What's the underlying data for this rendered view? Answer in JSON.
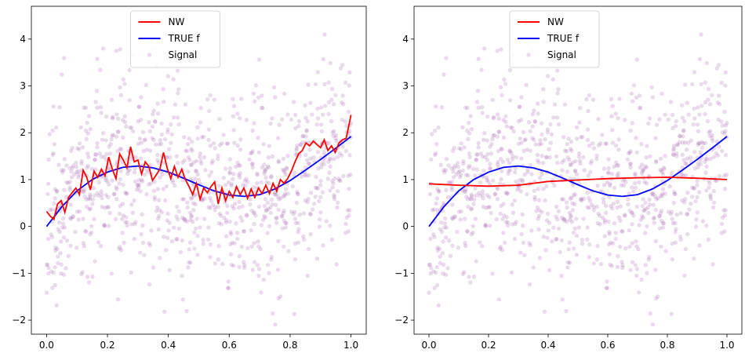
{
  "colors": {
    "nw": "#ff0000",
    "true_f": "#0000ff",
    "signal": "#a05aa8"
  },
  "chart_data": [
    {
      "type": "scatter",
      "title": "",
      "xlabel": "",
      "ylabel": "",
      "xlim": [
        -0.05,
        1.05
      ],
      "ylim": [
        -2.3,
        4.7
      ],
      "x_ticks": [
        0.0,
        0.2,
        0.4,
        0.6,
        0.8,
        1.0
      ],
      "x_tick_labels": [
        "0.0",
        "0.2",
        "0.4",
        "0.6",
        "0.8",
        "1.0"
      ],
      "y_ticks": [
        -2,
        -1,
        0,
        1,
        2,
        3,
        4
      ],
      "y_tick_labels": [
        "−2",
        "−1",
        "0",
        "1",
        "2",
        "3",
        "4"
      ],
      "grid": false,
      "legend_position": "top-center",
      "legend": [
        "NW",
        "TRUE f",
        "Signal"
      ],
      "series": [
        {
          "name": "NW",
          "kind": "line",
          "x": [
            0.0,
            0.012,
            0.024,
            0.036,
            0.048,
            0.06,
            0.072,
            0.084,
            0.096,
            0.108,
            0.12,
            0.132,
            0.144,
            0.156,
            0.168,
            0.18,
            0.192,
            0.204,
            0.216,
            0.228,
            0.24,
            0.252,
            0.264,
            0.276,
            0.288,
            0.3,
            0.312,
            0.324,
            0.336,
            0.348,
            0.36,
            0.372,
            0.384,
            0.396,
            0.408,
            0.42,
            0.432,
            0.444,
            0.456,
            0.468,
            0.48,
            0.492,
            0.504,
            0.516,
            0.528,
            0.54,
            0.552,
            0.564,
            0.576,
            0.588,
            0.6,
            0.612,
            0.624,
            0.636,
            0.648,
            0.66,
            0.672,
            0.684,
            0.696,
            0.708,
            0.72,
            0.732,
            0.744,
            0.756,
            0.768,
            0.78,
            0.792,
            0.804,
            0.816,
            0.828,
            0.84,
            0.852,
            0.864,
            0.876,
            0.888,
            0.9,
            0.912,
            0.924,
            0.936,
            0.948,
            0.96,
            0.972,
            0.984,
            1.0
          ],
          "y": [
            0.32,
            0.22,
            0.15,
            0.48,
            0.55,
            0.3,
            0.62,
            0.72,
            0.82,
            0.68,
            1.2,
            1.05,
            0.78,
            1.18,
            1.05,
            1.22,
            1.08,
            1.48,
            1.22,
            1.02,
            1.55,
            1.42,
            1.25,
            1.7,
            1.38,
            1.42,
            1.12,
            1.38,
            1.28,
            0.98,
            1.1,
            1.22,
            1.58,
            1.25,
            1.02,
            1.28,
            1.05,
            1.22,
            1.0,
            0.85,
            0.68,
            0.92,
            0.58,
            0.82,
            0.72,
            0.85,
            0.95,
            0.48,
            0.82,
            0.55,
            0.75,
            0.62,
            0.85,
            0.68,
            0.82,
            0.6,
            0.8,
            0.62,
            0.82,
            0.7,
            0.88,
            0.7,
            0.92,
            0.75,
            1.0,
            0.92,
            1.02,
            1.18,
            1.38,
            1.55,
            1.62,
            1.78,
            1.72,
            1.82,
            1.75,
            1.68,
            1.85,
            1.62,
            1.72,
            1.58,
            1.78,
            1.85,
            1.88,
            2.38
          ],
          "color": "#ff0000"
        },
        {
          "name": "TRUE f",
          "kind": "line",
          "x": [
            0.0,
            0.05,
            0.1,
            0.15,
            0.2,
            0.25,
            0.3,
            0.35,
            0.4,
            0.45,
            0.5,
            0.55,
            0.6,
            0.65,
            0.7,
            0.75,
            0.8,
            0.85,
            0.9,
            0.95,
            1.0
          ],
          "y": [
            0.0,
            0.42,
            0.76,
            1.0,
            1.16,
            1.26,
            1.29,
            1.25,
            1.16,
            1.03,
            0.89,
            0.76,
            0.67,
            0.64,
            0.68,
            0.8,
            0.98,
            1.2,
            1.43,
            1.67,
            1.92
          ],
          "color": "#0000ff"
        },
        {
          "name": "Signal",
          "kind": "scatter",
          "generator": "true_f_plus_noise",
          "n_points": 1000,
          "noise_sd": 1.0,
          "seed": 7,
          "color": "#a05aa8"
        }
      ]
    },
    {
      "type": "scatter",
      "title": "",
      "xlabel": "",
      "ylabel": "",
      "xlim": [
        -0.05,
        1.05
      ],
      "ylim": [
        -2.3,
        4.7
      ],
      "x_ticks": [
        0.0,
        0.2,
        0.4,
        0.6,
        0.8,
        1.0
      ],
      "x_tick_labels": [
        "0.0",
        "0.2",
        "0.4",
        "0.6",
        "0.8",
        "1.0"
      ],
      "y_ticks": [
        -2,
        -1,
        0,
        1,
        2,
        3,
        4
      ],
      "y_tick_labels": [
        "−2",
        "−1",
        "0",
        "1",
        "2",
        "3",
        "4"
      ],
      "grid": false,
      "legend_position": "top-center",
      "legend": [
        "NW",
        "TRUE f",
        "Signal"
      ],
      "series": [
        {
          "name": "NW",
          "kind": "line",
          "x": [
            0.0,
            0.1,
            0.2,
            0.3,
            0.4,
            0.5,
            0.6,
            0.7,
            0.8,
            0.9,
            1.0
          ],
          "y": [
            0.91,
            0.88,
            0.86,
            0.88,
            0.96,
            0.99,
            1.02,
            1.04,
            1.05,
            1.03,
            1.0
          ],
          "color": "#ff0000"
        },
        {
          "name": "TRUE f",
          "kind": "line",
          "x": [
            0.0,
            0.05,
            0.1,
            0.15,
            0.2,
            0.25,
            0.3,
            0.35,
            0.4,
            0.45,
            0.5,
            0.55,
            0.6,
            0.65,
            0.7,
            0.75,
            0.8,
            0.85,
            0.9,
            0.95,
            1.0
          ],
          "y": [
            0.0,
            0.42,
            0.76,
            1.0,
            1.16,
            1.26,
            1.29,
            1.25,
            1.16,
            1.03,
            0.89,
            0.76,
            0.67,
            0.64,
            0.68,
            0.8,
            0.98,
            1.2,
            1.43,
            1.67,
            1.92
          ],
          "color": "#0000ff"
        },
        {
          "name": "Signal",
          "kind": "scatter",
          "generator": "true_f_plus_noise",
          "n_points": 1000,
          "noise_sd": 1.0,
          "seed": 7,
          "color": "#a05aa8"
        }
      ]
    }
  ]
}
